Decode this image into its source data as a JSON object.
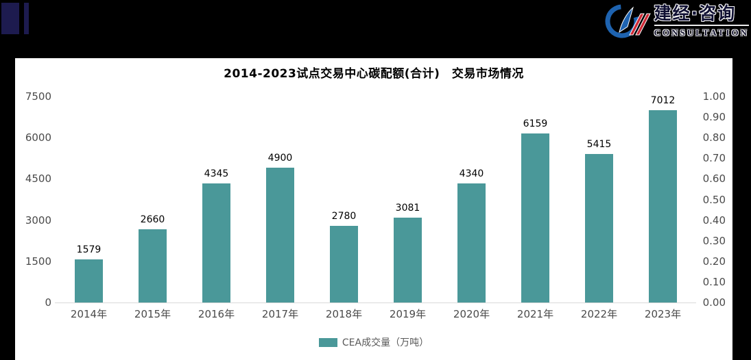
{
  "page": {
    "background": "#000000",
    "panel_background": "#ffffff"
  },
  "brand": {
    "name_cn": "建经·咨询",
    "name_en": "CONSULTATION",
    "logo_blue": "#1e63b0",
    "logo_red": "#ce2b37"
  },
  "decor": {
    "navy": "#1d1b4f"
  },
  "chart_data": {
    "type": "bar",
    "title": "2014-2023试点交易中心碳配额(合计)　交易市场情况",
    "categories": [
      "2014年",
      "2015年",
      "2016年",
      "2017年",
      "2018年",
      "2019年",
      "2020年",
      "2021年",
      "2022年",
      "2023年"
    ],
    "series": [
      {
        "name": "CEA成交量（万吨）",
        "values": [
          1579,
          2660,
          4345,
          4900,
          2780,
          3081,
          4340,
          6159,
          5415,
          7012
        ],
        "color": "#4a9899"
      }
    ],
    "data_labels": true,
    "grid": false,
    "legend_position": "bottom",
    "left_axis": {
      "min": 0,
      "max": 7500,
      "ticks": [
        0,
        1500,
        3000,
        4500,
        6000,
        7500
      ]
    },
    "right_axis": {
      "min": 0.0,
      "max": 1.0,
      "ticks": [
        "1.00",
        "0.90",
        "0.80",
        "0.70",
        "0.60",
        "0.50",
        "0.40",
        "0.30",
        "0.20",
        "0.10",
        "0.00"
      ]
    },
    "axis_line_color": "#d9d9d9"
  }
}
